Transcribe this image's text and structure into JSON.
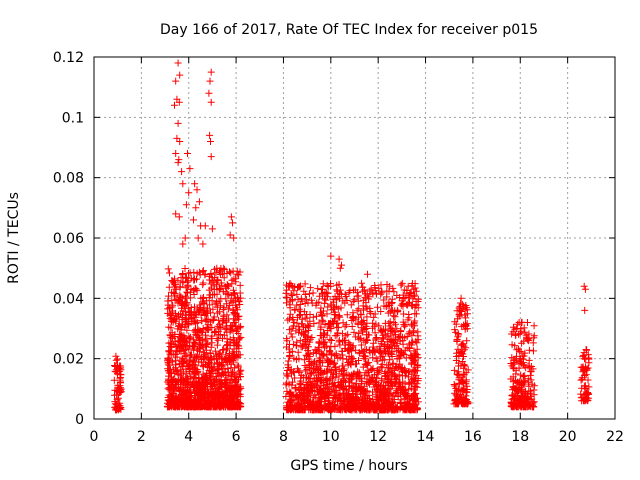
{
  "chart_data": {
    "type": "scatter",
    "title": "Day 166 of 2017, Rate Of TEC Index for receiver p015",
    "xlabel": "GPS time / hours",
    "ylabel": "ROTI / TECUs",
    "xlim": [
      0,
      22
    ],
    "ylim": [
      0,
      0.12
    ],
    "xticks": [
      0,
      2,
      4,
      6,
      8,
      10,
      12,
      14,
      16,
      18,
      20,
      22
    ],
    "xtick_labels": [
      "0",
      "2",
      "4",
      "6",
      "8",
      "10",
      "12",
      "14",
      "16",
      "18",
      "20",
      "22"
    ],
    "yticks": [
      0,
      0.02,
      0.04,
      0.06,
      0.08,
      0.1,
      0.12
    ],
    "ytick_labels": [
      "0",
      "0.02",
      "0.04",
      "0.06",
      "0.08",
      "0.1",
      "0.12"
    ],
    "grid": true,
    "marker": "+",
    "color": "#ff0000",
    "series": [
      {
        "name": "ROTI",
        "clusters": [
          {
            "x_range": [
              0.85,
              1.15
            ],
            "y_range": [
              0.003,
              0.022
            ],
            "count": 70
          },
          {
            "x_range": [
              3.1,
              6.2
            ],
            "y_range": [
              0.004,
              0.05
            ],
            "count": 1500
          },
          {
            "x_range": [
              8.1,
              13.7
            ],
            "y_range": [
              0.003,
              0.045
            ],
            "count": 1800
          },
          {
            "x_range": [
              15.2,
              15.8
            ],
            "y_range": [
              0.005,
              0.04
            ],
            "count": 170
          },
          {
            "x_range": [
              17.6,
              18.6
            ],
            "y_range": [
              0.004,
              0.033
            ],
            "count": 230
          },
          {
            "x_range": [
              20.55,
              20.9
            ],
            "y_range": [
              0.006,
              0.023
            ],
            "count": 60
          }
        ],
        "points": [
          [
            3.55,
            0.118
          ],
          [
            3.62,
            0.114
          ],
          [
            3.45,
            0.112
          ],
          [
            3.5,
            0.106
          ],
          [
            3.6,
            0.105
          ],
          [
            3.4,
            0.104
          ],
          [
            3.55,
            0.098
          ],
          [
            3.5,
            0.093
          ],
          [
            3.62,
            0.092
          ],
          [
            3.45,
            0.088
          ],
          [
            3.58,
            0.086
          ],
          [
            3.7,
            0.082
          ],
          [
            3.55,
            0.085
          ],
          [
            3.95,
            0.088
          ],
          [
            4.05,
            0.083
          ],
          [
            3.75,
            0.078
          ],
          [
            3.9,
            0.071
          ],
          [
            4.0,
            0.075
          ],
          [
            4.25,
            0.078
          ],
          [
            4.35,
            0.076
          ],
          [
            4.45,
            0.072
          ],
          [
            4.3,
            0.07
          ],
          [
            4.2,
            0.066
          ],
          [
            4.5,
            0.064
          ],
          [
            4.4,
            0.06
          ],
          [
            4.6,
            0.058
          ],
          [
            3.45,
            0.068
          ],
          [
            3.6,
            0.067
          ],
          [
            3.85,
            0.06
          ],
          [
            3.75,
            0.058
          ],
          [
            4.95,
            0.115
          ],
          [
            4.9,
            0.112
          ],
          [
            4.85,
            0.108
          ],
          [
            4.95,
            0.105
          ],
          [
            4.88,
            0.094
          ],
          [
            4.92,
            0.092
          ],
          [
            4.95,
            0.087
          ],
          [
            4.7,
            0.064
          ],
          [
            5.0,
            0.063
          ],
          [
            5.8,
            0.067
          ],
          [
            5.85,
            0.065
          ],
          [
            5.75,
            0.061
          ],
          [
            5.9,
            0.06
          ],
          [
            6.05,
            0.049
          ],
          [
            10.0,
            0.054
          ],
          [
            10.35,
            0.053
          ],
          [
            10.45,
            0.051
          ],
          [
            10.4,
            0.05
          ],
          [
            11.55,
            0.048
          ],
          [
            11.3,
            0.045
          ],
          [
            9.65,
            0.043
          ],
          [
            9.75,
            0.042
          ],
          [
            13.6,
            0.038
          ],
          [
            13.55,
            0.037
          ],
          [
            13.6,
            0.039
          ],
          [
            15.5,
            0.04
          ],
          [
            15.55,
            0.038
          ],
          [
            15.45,
            0.036
          ],
          [
            17.95,
            0.032
          ],
          [
            18.35,
            0.026
          ],
          [
            17.85,
            0.03
          ],
          [
            20.7,
            0.044
          ],
          [
            20.75,
            0.043
          ],
          [
            20.72,
            0.036
          ],
          [
            20.78,
            0.023
          ],
          [
            20.7,
            0.022
          ]
        ]
      }
    ]
  }
}
